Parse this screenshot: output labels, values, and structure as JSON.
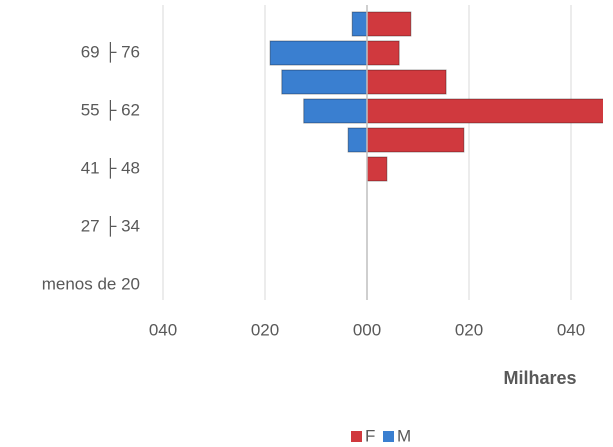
{
  "chart_data": {
    "type": "pyramid",
    "categories": [
      "menos de 20",
      null,
      "27 ├ 34",
      null,
      "41 ├ 48",
      null,
      "55 ├ 62",
      null,
      "69 ├ 76",
      null
    ],
    "series": [
      {
        "name": "F",
        "color": "#d0393e",
        "values": [
          0,
          0,
          0,
          0,
          3.9,
          19,
          48,
          15.5,
          6.3,
          8.6
        ]
      },
      {
        "name": "M",
        "color": "#3a7fd0",
        "values": [
          0,
          0,
          0,
          0,
          0,
          -3.7,
          -12.4,
          -16.7,
          -19,
          -2.9
        ]
      }
    ],
    "xlabel": "Milhares",
    "xlim": [
      -40,
      46
    ],
    "xticks": [
      {
        "value": -40,
        "label": "040"
      },
      {
        "value": -20,
        "label": "020"
      },
      {
        "value": 0,
        "label": "000"
      },
      {
        "value": 20,
        "label": "020"
      },
      {
        "value": 40,
        "label": "040"
      }
    ],
    "grid": true,
    "legend": "bottom"
  }
}
